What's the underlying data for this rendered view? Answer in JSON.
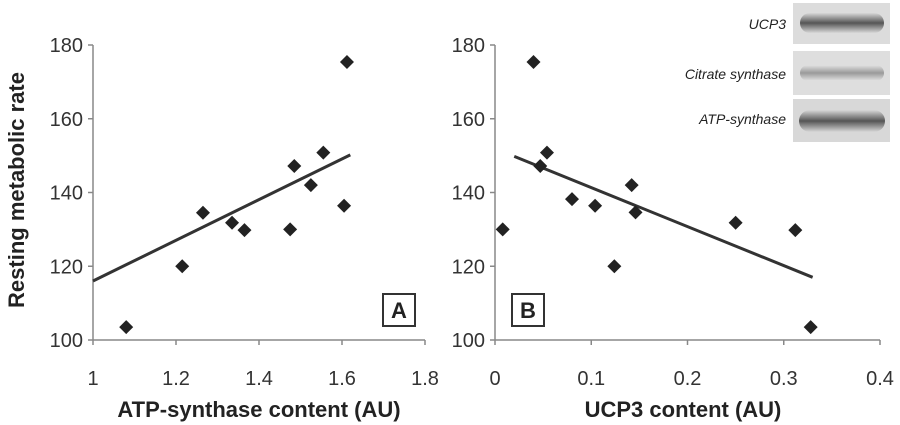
{
  "ylabel": "Resting metabolic rate",
  "chart_data": [
    {
      "type": "scatter",
      "panel": "A",
      "xlabel": "ATP-synthase content (AU)",
      "xlim": [
        1,
        1.8
      ],
      "ylim": [
        100,
        180
      ],
      "xticks": [
        "1",
        "1.2",
        "1.4",
        "1.6",
        "1.8"
      ],
      "yticks": [
        "100",
        "120",
        "140",
        "160",
        "180"
      ],
      "points": [
        [
          1.08,
          103.5
        ],
        [
          1.215,
          120
        ],
        [
          1.265,
          134.5
        ],
        [
          1.335,
          131.8
        ],
        [
          1.365,
          129.8
        ],
        [
          1.475,
          130
        ],
        [
          1.485,
          147.2
        ],
        [
          1.525,
          142
        ],
        [
          1.555,
          150.8
        ],
        [
          1.605,
          136.4
        ],
        [
          1.612,
          175.4
        ]
      ],
      "trendline": [
        [
          1.0,
          116
        ],
        [
          1.62,
          150.2
        ]
      ]
    },
    {
      "type": "scatter",
      "panel": "B",
      "xlabel": "UCP3 content (AU)",
      "xlim": [
        0,
        0.4
      ],
      "ylim": [
        100,
        180
      ],
      "xticks": [
        "0",
        "0.1",
        "0.2",
        "0.3",
        "0.4"
      ],
      "yticks": [
        "100",
        "120",
        "140",
        "160",
        "180"
      ],
      "points": [
        [
          0.008,
          130
        ],
        [
          0.04,
          175.4
        ],
        [
          0.047,
          147.2
        ],
        [
          0.054,
          150.8
        ],
        [
          0.08,
          138.2
        ],
        [
          0.104,
          136.4
        ],
        [
          0.124,
          120
        ],
        [
          0.142,
          142
        ],
        [
          0.146,
          134.6
        ],
        [
          0.25,
          131.8
        ],
        [
          0.312,
          129.8
        ],
        [
          0.328,
          103.5
        ]
      ],
      "trendline": [
        [
          0.02,
          149.8
        ],
        [
          0.33,
          117
        ]
      ]
    }
  ],
  "blots": [
    "UCP3",
    "Citrate synthase",
    "ATP-synthase"
  ],
  "colors": {
    "marker": "#222222",
    "line": "#333333",
    "axis": "#888888"
  }
}
